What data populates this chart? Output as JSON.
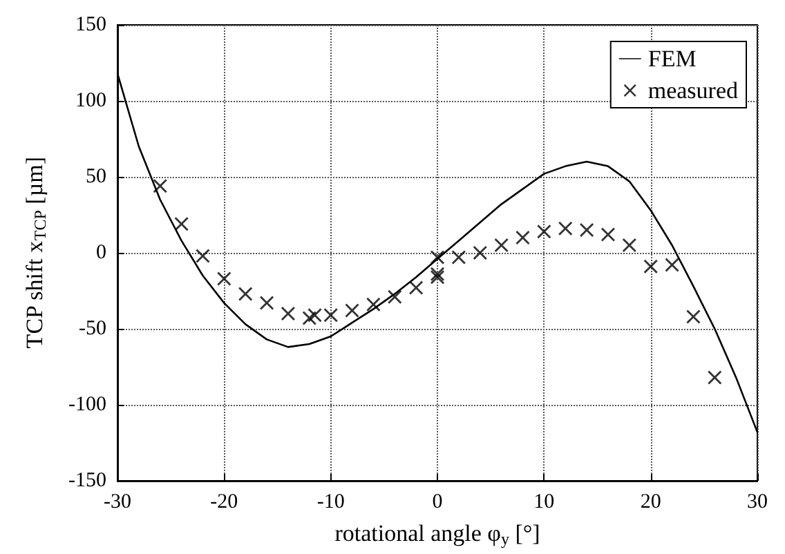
{
  "chart_data": {
    "type": "line",
    "xlabel": "rotational angle φ$_{y}$ [°]",
    "ylabel": "TCP shift x$_{TCP}$ [µm]",
    "xlim": [
      -30,
      30
    ],
    "xticks": [
      -30,
      -20,
      -10,
      0,
      10,
      20,
      30
    ],
    "ylim": [
      -150,
      150
    ],
    "yticks": [
      -150,
      -100,
      -50,
      0,
      50,
      100,
      150
    ],
    "grid": true,
    "legend": "top right",
    "series": [
      {
        "name": "FEM",
        "color": "#000000",
        "marker": "none",
        "line_style": "solid",
        "x": [
          -30,
          -28,
          -26,
          -24,
          -22,
          -20,
          -18,
          -16,
          -14,
          -12,
          -10,
          -8,
          -6,
          -4,
          -2,
          0,
          2,
          4,
          6,
          8,
          10,
          12,
          14,
          16,
          18,
          20,
          22,
          24,
          26,
          28,
          30
        ],
        "values": [
          118,
          70,
          35,
          8,
          -15,
          -33,
          -47,
          -57,
          -62,
          -60,
          -55,
          -46,
          -37,
          -27,
          -16,
          -4,
          8,
          20,
          32,
          42,
          52,
          57,
          60,
          57,
          47,
          28,
          5,
          -22,
          -50,
          -82,
          -118
        ]
      },
      {
        "name": "measured",
        "type": "scatter",
        "color": "#000000",
        "marker": "cross",
        "x": [
          -26,
          -24,
          -22,
          -20,
          -18,
          -16,
          -14,
          -12,
          -11.5,
          -10,
          -8,
          -6,
          -4,
          -2,
          0,
          0,
          0,
          2,
          4,
          6,
          8,
          10,
          12,
          14,
          16,
          18,
          20,
          22,
          24,
          26
        ],
        "values": [
          44,
          19,
          -2,
          -17,
          -27,
          -33,
          -40,
          -43,
          -41,
          -41,
          -38,
          -34,
          -29,
          -23,
          -16,
          -14,
          -3,
          -3,
          0,
          5,
          10,
          14,
          16,
          15,
          12,
          5,
          -9,
          -8,
          -42,
          -82
        ]
      }
    ]
  }
}
